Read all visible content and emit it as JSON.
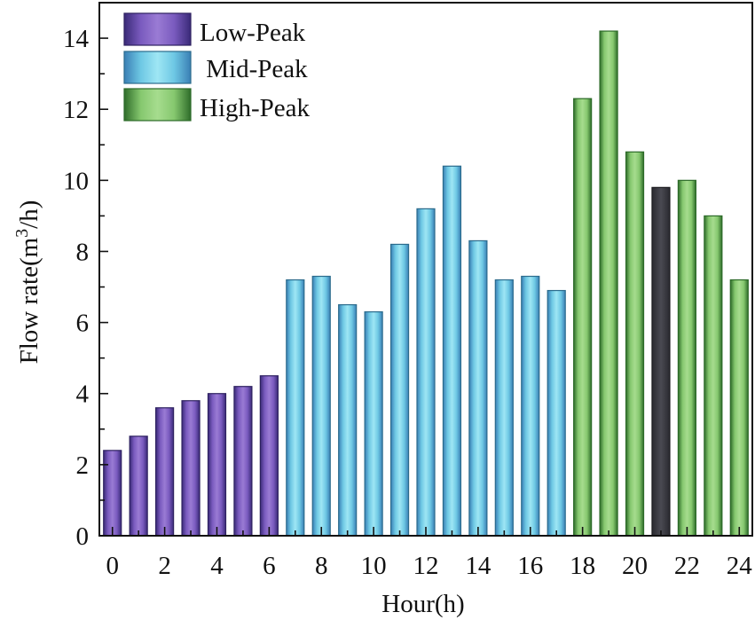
{
  "chart_data": {
    "type": "bar",
    "xlabel": "Hour(h)",
    "ylabel_main": "Flow rate(m",
    "ylabel_sup": "3",
    "ylabel_end": "/h)",
    "ylim": [
      0,
      15
    ],
    "yticks": [
      0,
      2,
      4,
      6,
      8,
      10,
      12,
      14
    ],
    "xlim": [
      -0.5,
      24.5
    ],
    "xticks": [
      0,
      2,
      4,
      6,
      8,
      10,
      12,
      14,
      16,
      18,
      20,
      22,
      24
    ],
    "legend_position": "top-left",
    "series": [
      {
        "name": "Low-Peak",
        "label_text": "Low-Peak",
        "color": "#7b5cb0",
        "edge": "#2e2160"
      },
      {
        "name": "Mid-Peak",
        "label_text": " Mid-Peak",
        "color": "#74d0e6",
        "edge": "#2b6b8c"
      },
      {
        "name": "High-Peak",
        "label_text": "High-Peak",
        "color": "#8fd07a",
        "edge": "#2c6a28"
      }
    ],
    "bars": [
      {
        "hour": 0,
        "value": 2.4,
        "series": "Low-Peak"
      },
      {
        "hour": 1,
        "value": 2.8,
        "series": "Low-Peak"
      },
      {
        "hour": 2,
        "value": 3.6,
        "series": "Low-Peak"
      },
      {
        "hour": 3,
        "value": 3.8,
        "series": "Low-Peak"
      },
      {
        "hour": 4,
        "value": 4.0,
        "series": "Low-Peak"
      },
      {
        "hour": 5,
        "value": 4.2,
        "series": "Low-Peak"
      },
      {
        "hour": 6,
        "value": 4.5,
        "series": "Low-Peak"
      },
      {
        "hour": 7,
        "value": 7.2,
        "series": "Mid-Peak"
      },
      {
        "hour": 8,
        "value": 7.3,
        "series": "Mid-Peak"
      },
      {
        "hour": 9,
        "value": 6.5,
        "series": "Mid-Peak"
      },
      {
        "hour": 10,
        "value": 6.3,
        "series": "Mid-Peak"
      },
      {
        "hour": 11,
        "value": 8.2,
        "series": "Mid-Peak"
      },
      {
        "hour": 12,
        "value": 9.2,
        "series": "Mid-Peak"
      },
      {
        "hour": 13,
        "value": 10.4,
        "series": "Mid-Peak"
      },
      {
        "hour": 14,
        "value": 8.3,
        "series": "Mid-Peak"
      },
      {
        "hour": 15,
        "value": 7.2,
        "series": "Mid-Peak"
      },
      {
        "hour": 16,
        "value": 7.3,
        "series": "Mid-Peak"
      },
      {
        "hour": 17,
        "value": 6.9,
        "series": "Mid-Peak"
      },
      {
        "hour": 18,
        "value": 12.3,
        "series": "High-Peak"
      },
      {
        "hour": 19,
        "value": 14.2,
        "series": "High-Peak"
      },
      {
        "hour": 20,
        "value": 10.8,
        "series": "High-Peak"
      },
      {
        "hour": 21,
        "value": 9.8,
        "series": "High-Peak",
        "color_override": "#3c3c44"
      },
      {
        "hour": 22,
        "value": 10.0,
        "series": "High-Peak"
      },
      {
        "hour": 23,
        "value": 9.0,
        "series": "High-Peak"
      },
      {
        "hour": 24,
        "value": 7.2,
        "series": "High-Peak"
      }
    ]
  }
}
